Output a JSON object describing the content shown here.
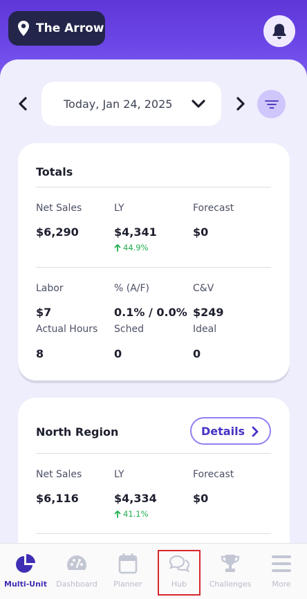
{
  "header": {
    "location": "The Arrow"
  },
  "date_bar": {
    "date": "Today, Jan 24, 2025"
  },
  "totals": {
    "title": "Totals",
    "net_sales_label": "Net Sales",
    "net_sales": "$6,290",
    "ly_label": "LY",
    "ly": "$4,341",
    "ly_delta": "44.9%",
    "forecast_label": "Forecast",
    "forecast": "$0",
    "labor_label": "Labor",
    "labor": "$7",
    "af_label": "% (A/F)",
    "af": "0.1% / 0.0%",
    "cv_label": "C&V",
    "cv": "$249",
    "actual_hours_label": "Actual Hours",
    "actual_hours": "8",
    "sched_label": "Sched",
    "sched": "0",
    "ideal_label": "Ideal",
    "ideal": "0"
  },
  "north_region": {
    "title": "North Region",
    "details_label": "Details",
    "net_sales_label": "Net Sales",
    "net_sales": "$6,116",
    "ly_label": "LY",
    "ly": "$4,334",
    "ly_delta": "41.1%",
    "forecast_label": "Forecast",
    "forecast": "$0"
  },
  "tabbar": {
    "tabs": [
      {
        "label": "Multi-Unit",
        "icon": "pie-chart-icon",
        "active": true
      },
      {
        "label": "Dashboard",
        "icon": "gauge-icon"
      },
      {
        "label": "Planner",
        "icon": "calendar-icon"
      },
      {
        "label": "Hub",
        "icon": "chat-bubbles-icon"
      },
      {
        "label": "Challenges",
        "icon": "trophy-icon"
      },
      {
        "label": "More",
        "icon": "menu-icon"
      }
    ]
  },
  "colors": {
    "brand": "#6b45e6",
    "accent": "#4532c4",
    "positive": "#1fae4e",
    "highlight": "#d9262d"
  }
}
